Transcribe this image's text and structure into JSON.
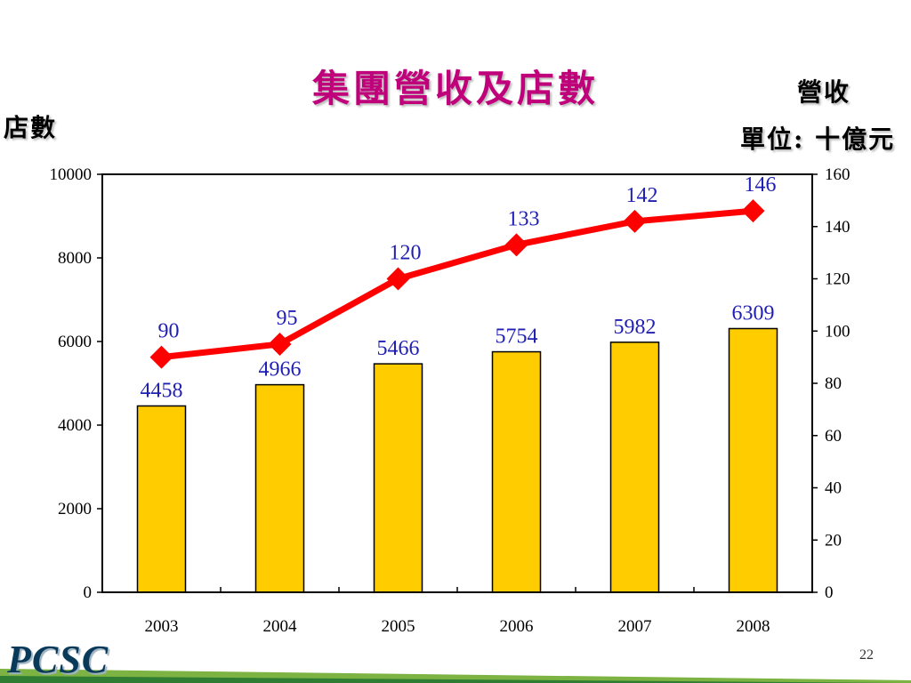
{
  "slide": {
    "title": "集團營收及店數",
    "left_axis_title": "店數",
    "right_axis_title": "營收",
    "right_unit": "單位: 十億元",
    "page_number": "22",
    "logo_text": "PCSC"
  },
  "colors": {
    "title": "#c0007a",
    "bar_fill": "#ffcc00",
    "line": "#ff0000",
    "data_label": "#1f1fb4",
    "green_stripe": "#2e7d32"
  },
  "chart_data": {
    "type": "bar",
    "categories": [
      "2003",
      "2004",
      "2005",
      "2006",
      "2007",
      "2008"
    ],
    "series": [
      {
        "type": "bar",
        "axis": "left",
        "values": [
          4458,
          4966,
          5466,
          5754,
          5982,
          6309
        ]
      },
      {
        "type": "line",
        "axis": "right",
        "values": [
          90,
          95,
          120,
          133,
          142,
          146
        ]
      }
    ],
    "left_axis": {
      "range": [
        0,
        10000
      ],
      "ticks": [
        "0",
        "2000",
        "4000",
        "6000",
        "8000",
        "10000"
      ]
    },
    "right_axis": {
      "range": [
        0,
        160
      ],
      "ticks": [
        "0",
        "20",
        "40",
        "60",
        "80",
        "100",
        "120",
        "140",
        "160"
      ]
    },
    "grid": false,
    "legend": "none"
  }
}
